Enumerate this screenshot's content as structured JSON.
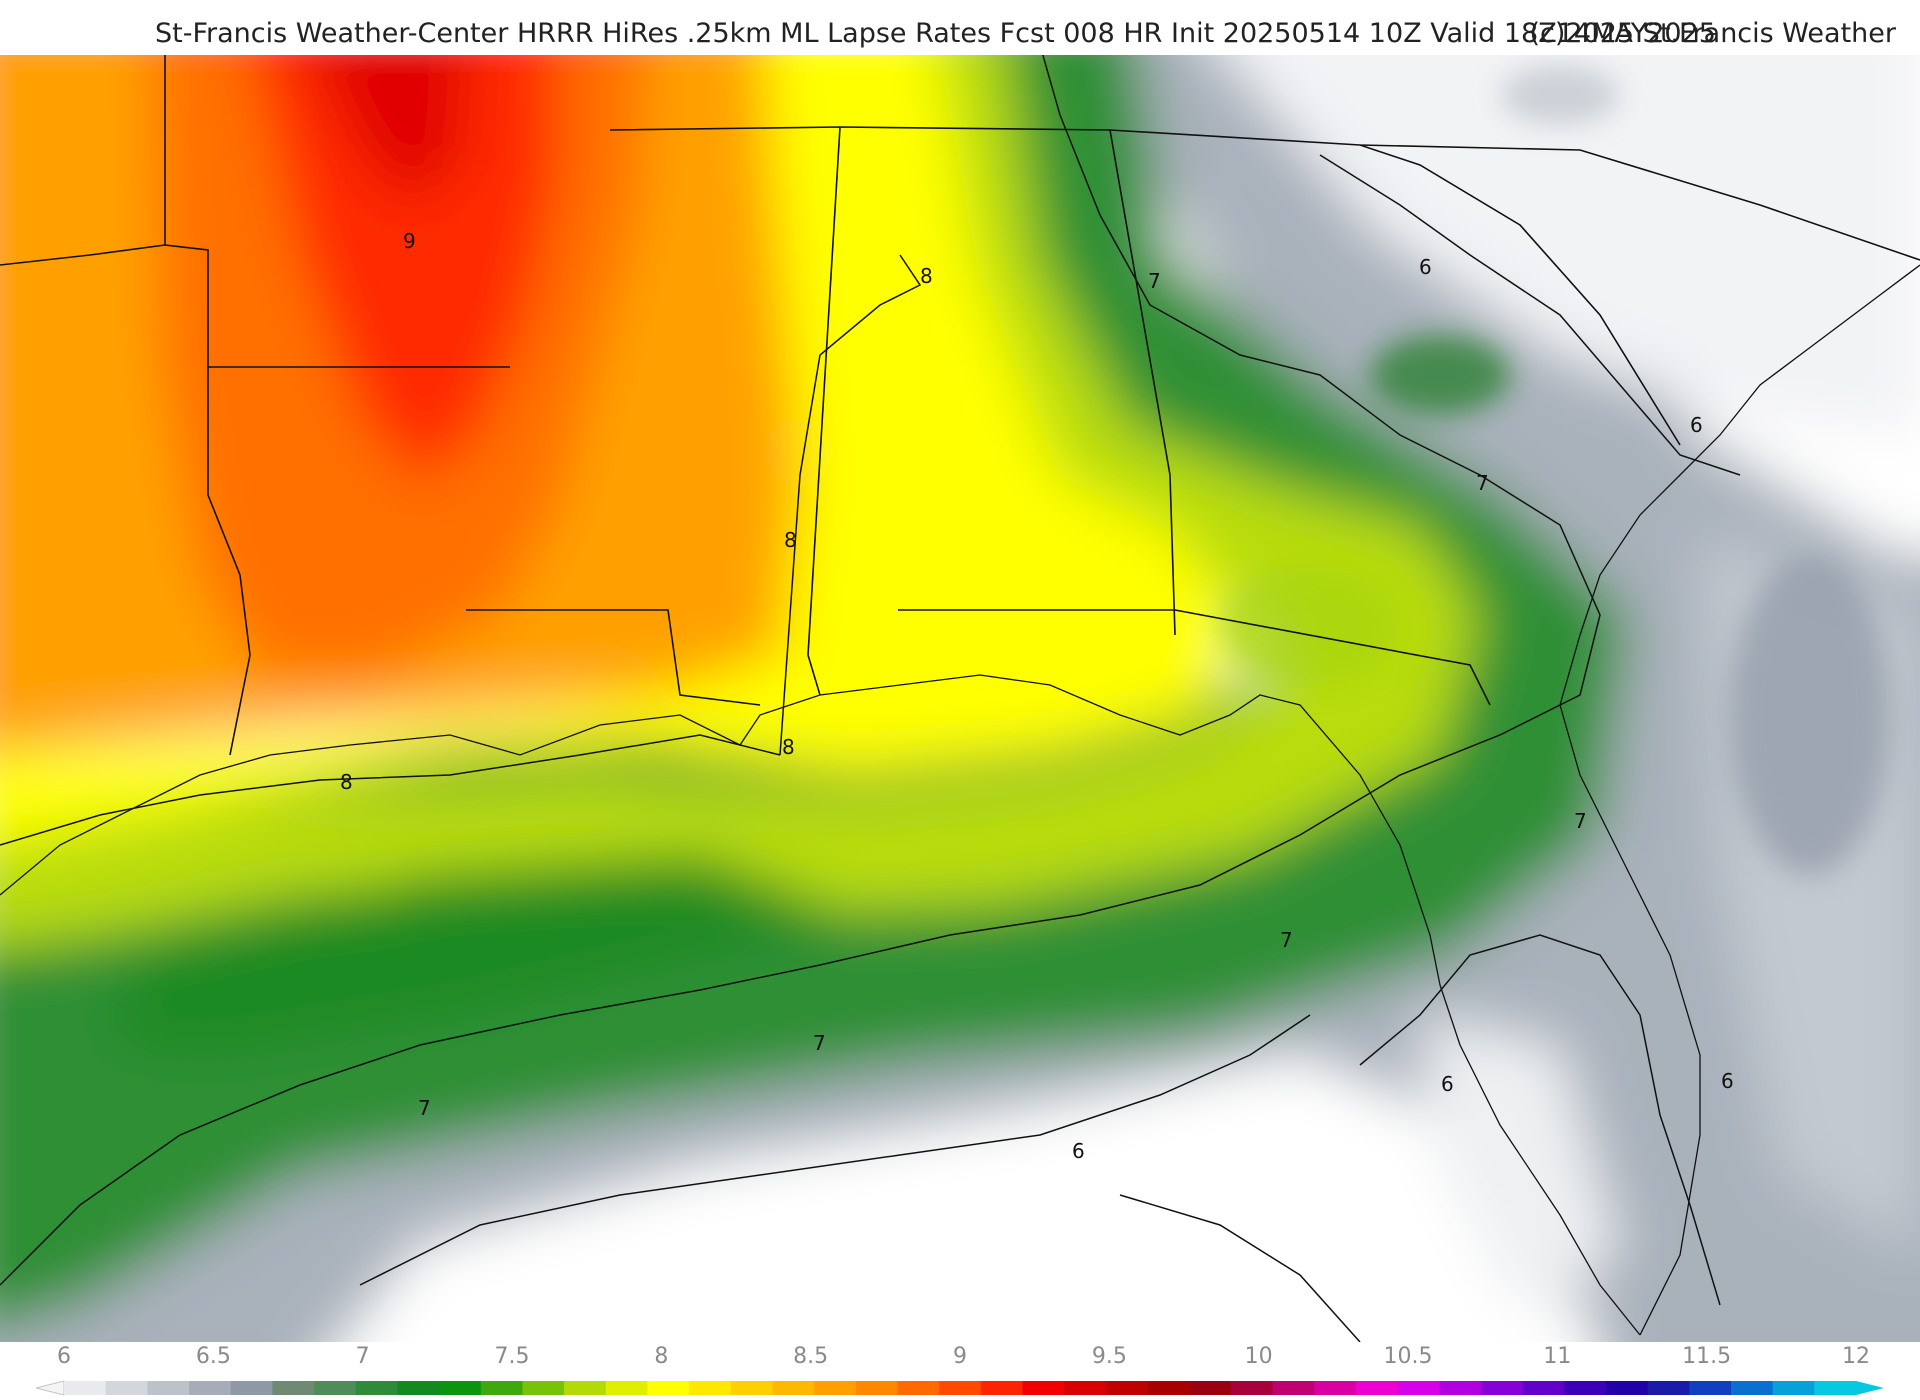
{
  "header": {
    "title": "St-Francis Weather-Center HRRR HiRes .25km ML Lapse Rates  Fcst 008 HR Init 20250514 10Z  Valid 18Z14MAY2025",
    "copyright": "(c)2025 St.Francis Weather"
  },
  "map": {
    "field": "ML Lapse Rates",
    "model": "HRRR",
    "contour_labels": [
      {
        "value": "9"
      },
      {
        "value": "8"
      },
      {
        "value": "8"
      },
      {
        "value": "8"
      },
      {
        "value": "8"
      },
      {
        "value": "7"
      },
      {
        "value": "7"
      },
      {
        "value": "7"
      },
      {
        "value": "7"
      },
      {
        "value": "7"
      },
      {
        "value": "7"
      },
      {
        "value": "6"
      },
      {
        "value": "6"
      },
      {
        "value": "6"
      },
      {
        "value": "6"
      },
      {
        "value": "6"
      }
    ]
  },
  "legend": {
    "ticks": [
      "6",
      "6.5",
      "7",
      "7.5",
      "8",
      "8.5",
      "9",
      "9.5",
      "10",
      "10.5",
      "11",
      "11.5",
      "12"
    ],
    "colors": [
      "#e8eaee",
      "#d3d7dd",
      "#bcc2ca",
      "#a6adb8",
      "#8f98a6",
      "#6f8a72",
      "#4f8c57",
      "#2f8a3a",
      "#138a1f",
      "#0a9410",
      "#3ea80e",
      "#79c20a",
      "#b3da06",
      "#e0ee02",
      "#ffff00",
      "#ffe800",
      "#ffd000",
      "#ffb800",
      "#ffa000",
      "#ff8800",
      "#ff6a00",
      "#ff4a00",
      "#ff2400",
      "#f00000",
      "#d80000",
      "#c00000",
      "#a80000",
      "#9a0010",
      "#a8003a",
      "#c00070",
      "#d800a0",
      "#ee00d0",
      "#d800e8",
      "#b000e0",
      "#8800d8",
      "#6000c8",
      "#3c00b8",
      "#2200a8",
      "#1a1aa8",
      "#1040c0",
      "#0a70d0",
      "#08a0d8",
      "#06c8e0"
    ]
  }
}
